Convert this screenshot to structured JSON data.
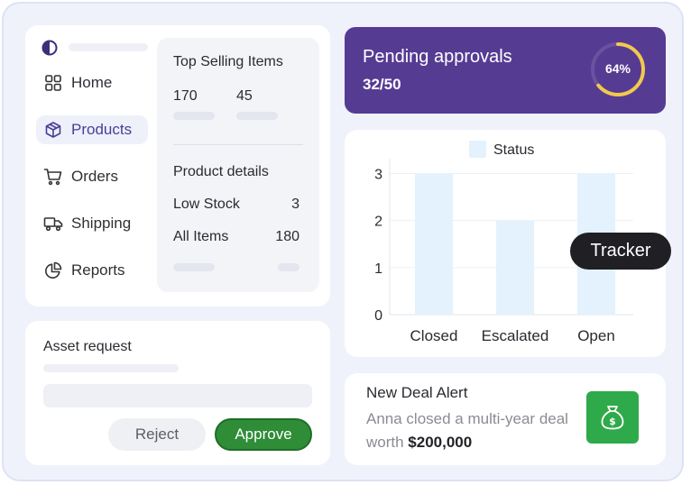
{
  "nav": {
    "items": [
      {
        "label": "Home",
        "icon": "grid-icon"
      },
      {
        "label": "Products",
        "icon": "box-icon",
        "active": true
      },
      {
        "label": "Orders",
        "icon": "cart-icon"
      },
      {
        "label": "Shipping",
        "icon": "truck-icon"
      },
      {
        "label": "Reports",
        "icon": "pie-chart-icon"
      }
    ]
  },
  "top_selling": {
    "title": "Top Selling Items",
    "values": [
      "170",
      "45"
    ]
  },
  "product_details": {
    "title": "Product details",
    "rows": [
      {
        "label": "Low Stock",
        "value": "3"
      },
      {
        "label": "All Items",
        "value": "180"
      }
    ]
  },
  "asset_request": {
    "title": "Asset request",
    "reject_label": "Reject",
    "approve_label": "Approve"
  },
  "pending": {
    "title": "Pending approvals",
    "value": "32/50",
    "percent_label": "64%",
    "percent": 64
  },
  "chart_data": {
    "type": "bar",
    "categories": [
      "Closed",
      "Escalated",
      "Open"
    ],
    "series": [
      {
        "name": "Status",
        "values": [
          3,
          2,
          3
        ]
      }
    ],
    "yticks": [
      "0",
      "1",
      "2",
      "3"
    ],
    "ylim": [
      0,
      3.2
    ],
    "legend": "top",
    "grid": true
  },
  "tooltip": {
    "label": "Tracker"
  },
  "deal": {
    "title": "New Deal Alert",
    "text": "Anna closed a multi-year deal worth ",
    "amount": "$200,000"
  },
  "colors": {
    "accent": "#563b93",
    "gauge": "#f2c94c",
    "approve": "#2f8c37",
    "bar": "#e3f2fd"
  }
}
